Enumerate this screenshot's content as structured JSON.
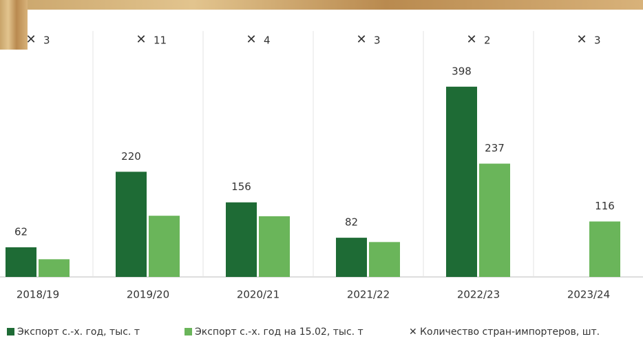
{
  "chart_data": {
    "type": "bar",
    "categories": [
      "2018/19",
      "2019/20",
      "2020/21",
      "2021/22",
      "2022/23",
      "2023/24"
    ],
    "series": [
      {
        "name": "Экспорт с.-х. год, тыс. т",
        "color": "#1e6b35",
        "values": [
          62,
          220,
          156,
          82,
          398,
          null
        ]
      },
      {
        "name": "Экспорт с.-х. год на 15.02, тыс. т",
        "color": "#6ab55a",
        "values": [
          37,
          128,
          127,
          73,
          237,
          116
        ],
        "value_labels": [
          null,
          null,
          null,
          null,
          "237",
          "116"
        ]
      }
    ],
    "importers": {
      "name": "Количество стран-импортеров, шт.",
      "marker": "✕",
      "values": [
        3,
        11,
        4,
        3,
        2,
        3
      ]
    },
    "ylim": [
      0,
      560
    ],
    "grid": true
  }
}
